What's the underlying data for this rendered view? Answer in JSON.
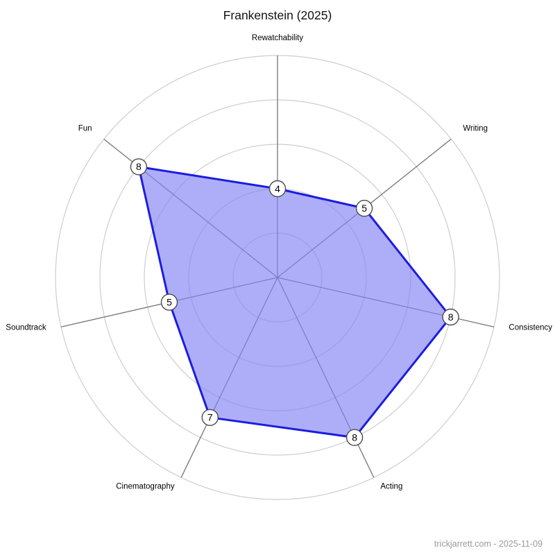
{
  "header": {
    "title": "Frankenstein (2025)"
  },
  "footer": {
    "watermark": "trickjarrett.com - 2025-11-09"
  },
  "chart_data": {
    "type": "radar",
    "title": "Frankenstein (2025)",
    "categories": [
      "Rewatchability",
      "Writing",
      "Consistency",
      "Acting",
      "Cinematography",
      "Soundtrack",
      "Fun"
    ],
    "values": [
      4,
      5,
      8,
      8,
      7,
      5,
      8
    ],
    "scale": {
      "min": 0,
      "max": 10,
      "grid_rings": [
        2,
        4,
        6,
        8,
        10
      ]
    },
    "start_angle_deg": -90,
    "direction": "clockwise",
    "legend": "none",
    "point_value_labels_shown": true,
    "colors": {
      "background": "#ffffff",
      "fill": "rgba(130,130,245,0.65)",
      "stroke": "#1c1ce0",
      "grid": "#cdcdcd",
      "axis": "#757575",
      "marker_fill": "#ffffff",
      "marker_border": "#4a4a4a",
      "value_text": "#000000",
      "label": "#000000",
      "title": "#111111",
      "watermark": "#9a9a9a"
    }
  }
}
